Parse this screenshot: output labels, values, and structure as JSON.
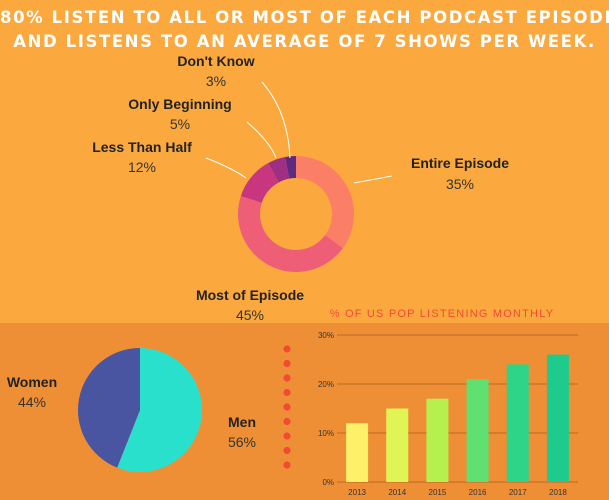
{
  "headline": {
    "line1_pre": "80% LISTEN TO ",
    "line1_bold": "ALL OR MOST",
    "line1_post": " OF EACH PODCAST EPISODE",
    "line2": "AND LISTENS TO AN AVERAGE OF 7 SHOWS PER WEEK."
  },
  "chart_data": [
    {
      "type": "pie",
      "variant": "donut",
      "title": "",
      "slices": [
        {
          "label": "Entire Episode",
          "value": 35,
          "display": "35%",
          "color": "#FB7F66"
        },
        {
          "label": "Most of Episode",
          "value": 45,
          "display": "45%",
          "color": "#EE5E77"
        },
        {
          "label": "Less Than Half",
          "value": 12,
          "display": "12%",
          "color": "#C93680"
        },
        {
          "label": "Only Beginning",
          "value": 5,
          "display": "5%",
          "color": "#9E2F82"
        },
        {
          "label": "Don't Know",
          "value": 3,
          "display": "3%",
          "color": "#5E2A7F"
        }
      ]
    },
    {
      "type": "pie",
      "title": "",
      "slices": [
        {
          "label": "Women",
          "value": 44,
          "display": "44%",
          "color": "#4A55A2"
        },
        {
          "label": "Men",
          "value": 56,
          "display": "56%",
          "color": "#29E0CC"
        }
      ]
    },
    {
      "type": "bar",
      "title": "% OF US POP LISTENING MONTHLY",
      "categories": [
        "2013",
        "2014",
        "2015",
        "2016",
        "2017",
        "2018"
      ],
      "values": [
        12,
        15,
        17,
        21,
        24,
        26
      ],
      "colors": [
        "#FFF06A",
        "#DFF555",
        "#B5F04F",
        "#5FE070",
        "#2ED588",
        "#1ECB8D"
      ],
      "ylim": [
        0,
        30
      ],
      "yticks": [
        0,
        10,
        20,
        30
      ],
      "ytick_labels": [
        "0%",
        "10%",
        "20%",
        "30%"
      ],
      "grid": true
    }
  ]
}
